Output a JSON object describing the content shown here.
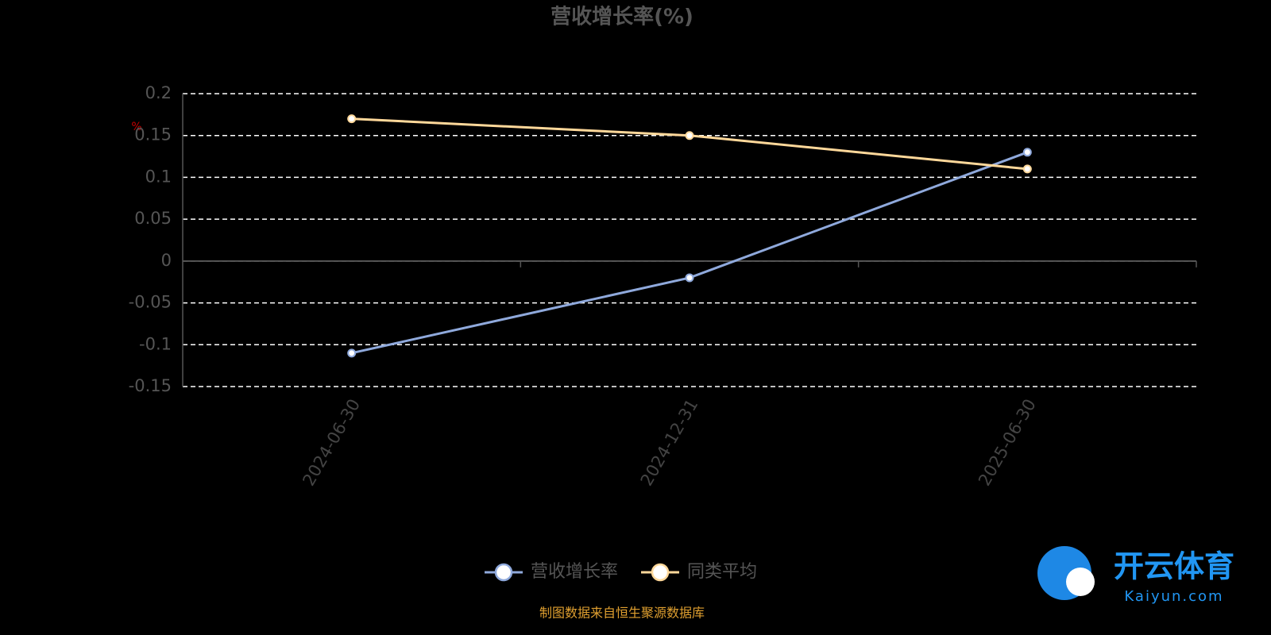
{
  "chart_data": {
    "type": "line",
    "title": "营收增长率(%)",
    "unit": "%",
    "categories": [
      "2024-06-30",
      "2024-12-31",
      "2025-06-30"
    ],
    "series": [
      {
        "name": "营收增长率",
        "color": "#8fa9dc",
        "values": [
          -0.11,
          -0.02,
          0.13
        ]
      },
      {
        "name": "同类平均",
        "color": "#ffd89a",
        "values": [
          0.17,
          0.15,
          0.11
        ]
      }
    ],
    "ylim": [
      -0.15,
      0.2
    ],
    "yticks": [
      0.2,
      0.15,
      0.1,
      0.05,
      0,
      -0.05,
      -0.1,
      -0.15
    ],
    "grid": true,
    "legend": "bottom",
    "source": "制图数据来自恒生聚源数据库"
  },
  "watermark": {
    "name": "开云体育",
    "url": "Kaiyun.com"
  }
}
